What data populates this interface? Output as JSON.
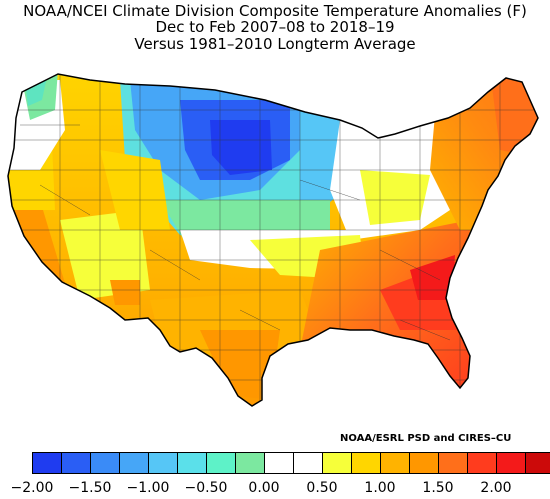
{
  "title": {
    "line1": "NOAA/NCEI Climate Division Composite Temperature Anomalies (F)",
    "line2": "Dec to Feb 2007–08 to 2018–19",
    "line3": "Versus 1981–2010 Longterm Average"
  },
  "credit": "NOAA/ESRL PSD and CIRES–CU",
  "colorbar": {
    "colors": [
      "#1f3cf0",
      "#2a5ef5",
      "#3a8bf7",
      "#46a6f7",
      "#56c6f6",
      "#5be0ea",
      "#5ef2c8",
      "#7ce8a0",
      "#ffffff",
      "#ffffff",
      "#f6ff3a",
      "#ffd600",
      "#ffb300",
      "#ff9700",
      "#ff6f1a",
      "#ff3c1e",
      "#f41a1a",
      "#cc0a0a"
    ],
    "tick_labels": [
      "−2.00",
      "−1.50",
      "−1.00",
      "−0.50",
      "0.00",
      "0.50",
      "1.00",
      "1.50",
      "2.00"
    ]
  }
}
